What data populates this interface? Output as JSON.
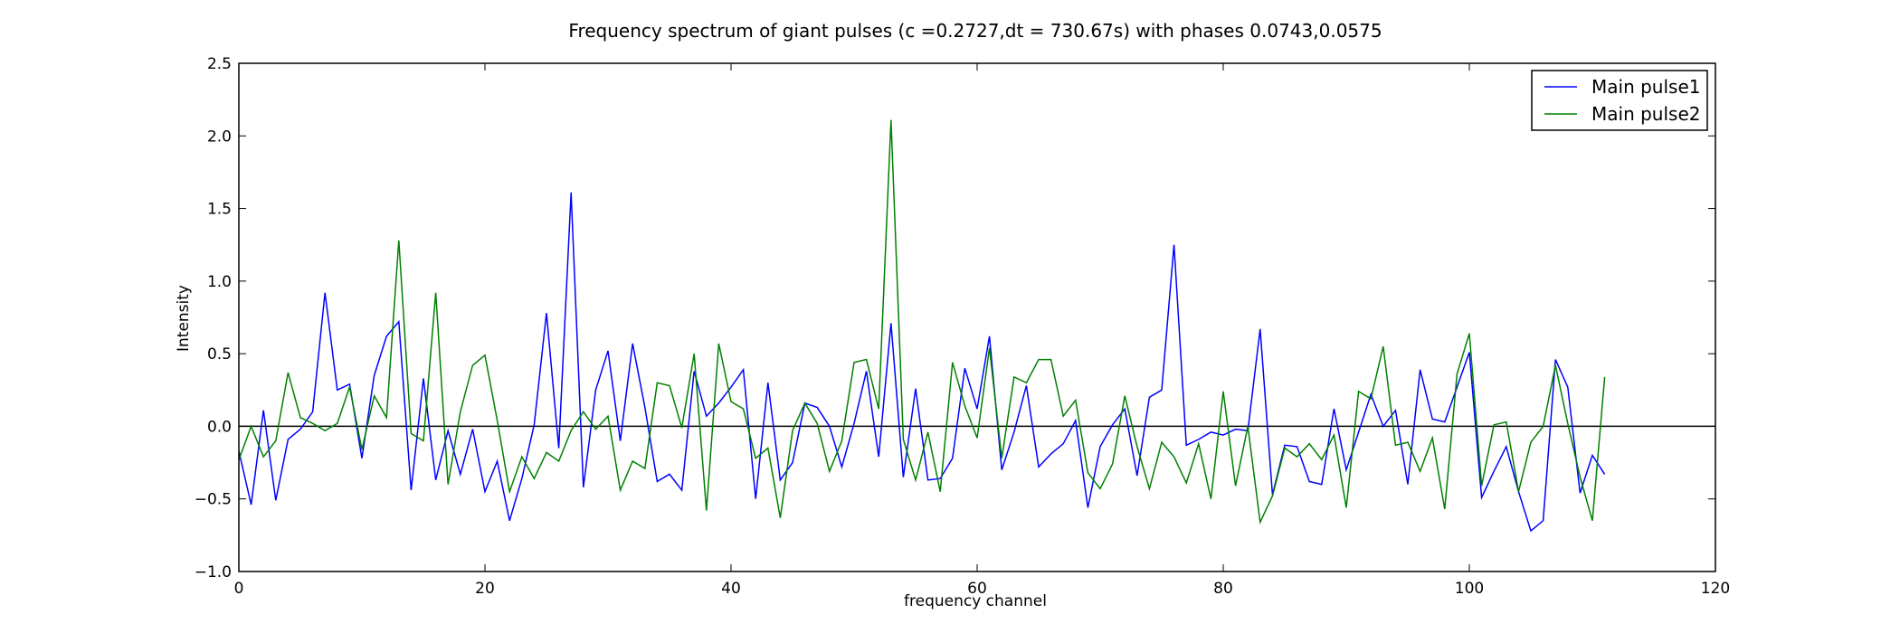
{
  "chart_data": {
    "type": "line",
    "title": "Frequency spectrum of giant pulses (c =0.2727,dt = 730.67s) with phases 0.0743,0.0575",
    "xlabel": "frequency channel",
    "ylabel": "Intensity",
    "xlim": [
      0,
      120
    ],
    "ylim": [
      -1.0,
      2.5
    ],
    "xticks": [
      "0",
      "20",
      "40",
      "60",
      "80",
      "100",
      "120"
    ],
    "yticks": [
      "−1.0",
      "−0.5",
      "0.0",
      "0.5",
      "1.0",
      "1.5",
      "2.0",
      "2.5"
    ],
    "grid": false,
    "legend_position": "top-right",
    "reference_line_y": 0,
    "series": [
      {
        "name": "Main pulse1",
        "color": "#0000ff",
        "values": [
          -0.17,
          -0.54,
          0.11,
          -0.51,
          -0.09,
          -0.02,
          0.1,
          0.92,
          0.25,
          0.29,
          -0.22,
          0.35,
          0.62,
          0.72,
          -0.44,
          0.33,
          -0.37,
          -0.03,
          -0.33,
          -0.02,
          -0.45,
          -0.24,
          -0.65,
          -0.36,
          0.01,
          0.78,
          -0.15,
          1.61,
          -0.42,
          0.25,
          0.52,
          -0.1,
          0.57,
          0.13,
          -0.38,
          -0.33,
          -0.44,
          0.38,
          0.07,
          0.16,
          0.27,
          0.39,
          -0.5,
          0.3,
          -0.37,
          -0.25,
          0.16,
          0.13,
          0.0,
          -0.28,
          0.02,
          0.38,
          -0.21,
          0.71,
          -0.35,
          0.26,
          -0.37,
          -0.36,
          -0.22,
          0.4,
          0.12,
          0.62,
          -0.3,
          -0.04,
          0.28,
          -0.28,
          -0.19,
          -0.12,
          0.04,
          -0.56,
          -0.14,
          0.01,
          0.12,
          -0.34,
          0.2,
          0.25,
          1.25,
          -0.13,
          -0.09,
          -0.04,
          -0.06,
          -0.02,
          -0.03,
          0.67,
          -0.47,
          -0.13,
          -0.14,
          -0.38,
          -0.4,
          0.12,
          -0.3,
          -0.04,
          0.22,
          0.0,
          0.11,
          -0.4,
          0.39,
          0.05,
          0.03,
          0.27,
          0.51,
          -0.49,
          -0.31,
          -0.14,
          -0.45,
          -0.72,
          -0.65,
          0.46,
          0.27,
          -0.46,
          -0.2,
          -0.33
        ]
      },
      {
        "name": "Main pulse2",
        "color": "#008000",
        "values": [
          -0.23,
          0.0,
          -0.21,
          -0.1,
          0.37,
          0.06,
          0.02,
          -0.03,
          0.02,
          0.27,
          -0.16,
          0.21,
          0.06,
          1.28,
          -0.05,
          -0.1,
          0.92,
          -0.4,
          0.1,
          0.42,
          0.49,
          0.04,
          -0.45,
          -0.21,
          -0.36,
          -0.18,
          -0.24,
          -0.03,
          0.1,
          -0.02,
          0.07,
          -0.44,
          -0.24,
          -0.29,
          0.3,
          0.28,
          -0.01,
          0.5,
          -0.58,
          0.57,
          0.17,
          0.12,
          -0.22,
          -0.15,
          -0.63,
          -0.03,
          0.16,
          0.02,
          -0.31,
          -0.1,
          0.44,
          0.46,
          0.12,
          2.11,
          -0.09,
          -0.37,
          -0.04,
          -0.45,
          0.44,
          0.14,
          -0.08,
          0.54,
          -0.22,
          0.34,
          0.3,
          0.46,
          0.46,
          0.07,
          0.18,
          -0.32,
          -0.43,
          -0.26,
          0.21,
          -0.14,
          -0.43,
          -0.11,
          -0.21,
          -0.39,
          -0.12,
          -0.5,
          0.24,
          -0.41,
          0.0,
          -0.66,
          -0.48,
          -0.15,
          -0.21,
          -0.12,
          -0.23,
          -0.06,
          -0.56,
          0.24,
          0.19,
          0.55,
          -0.13,
          -0.11,
          -0.31,
          -0.08,
          -0.57,
          0.36,
          0.64,
          -0.41,
          0.01,
          0.03,
          -0.45,
          -0.11,
          0.0,
          0.42,
          0.02,
          -0.35,
          -0.65,
          0.34
        ]
      }
    ]
  }
}
